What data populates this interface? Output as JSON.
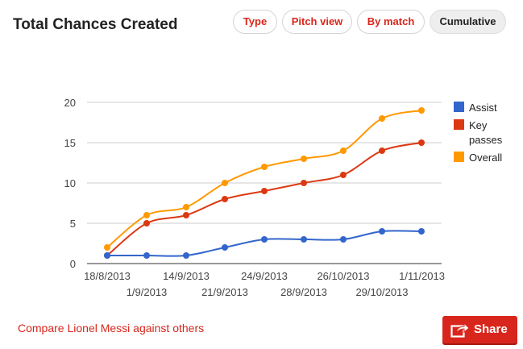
{
  "title": "Total Chances Created",
  "buttons": {
    "type": "Type",
    "pitch_view": "Pitch view",
    "by_match": "By match",
    "cumulative": "Cumulative"
  },
  "compare_link": "Compare Lionel Messi against others",
  "share_label": "Share",
  "chart_data": {
    "type": "line",
    "x": [
      "18/8/2013",
      "1/9/2013",
      "14/9/2013",
      "21/9/2013",
      "24/9/2013",
      "28/9/2013",
      "26/10/2013",
      "29/10/2013",
      "1/11/2013"
    ],
    "series": [
      {
        "name": "Assist",
        "color": "#3366cc",
        "values": [
          1,
          1,
          1,
          2,
          3,
          3,
          3,
          4,
          4
        ]
      },
      {
        "name": "Key passes",
        "color": "#dc3912",
        "values": [
          1,
          5,
          6,
          8,
          9,
          10,
          11,
          14,
          15
        ]
      },
      {
        "name": "Overall",
        "color": "#ff9900",
        "values": [
          2,
          6,
          7,
          10,
          12,
          13,
          14,
          18,
          19
        ]
      }
    ],
    "ylim": [
      0,
      20
    ],
    "yticks": [
      0,
      5,
      10,
      15,
      20
    ],
    "grid": true,
    "legend": "right",
    "title": "",
    "xlabel": "",
    "ylabel": ""
  }
}
